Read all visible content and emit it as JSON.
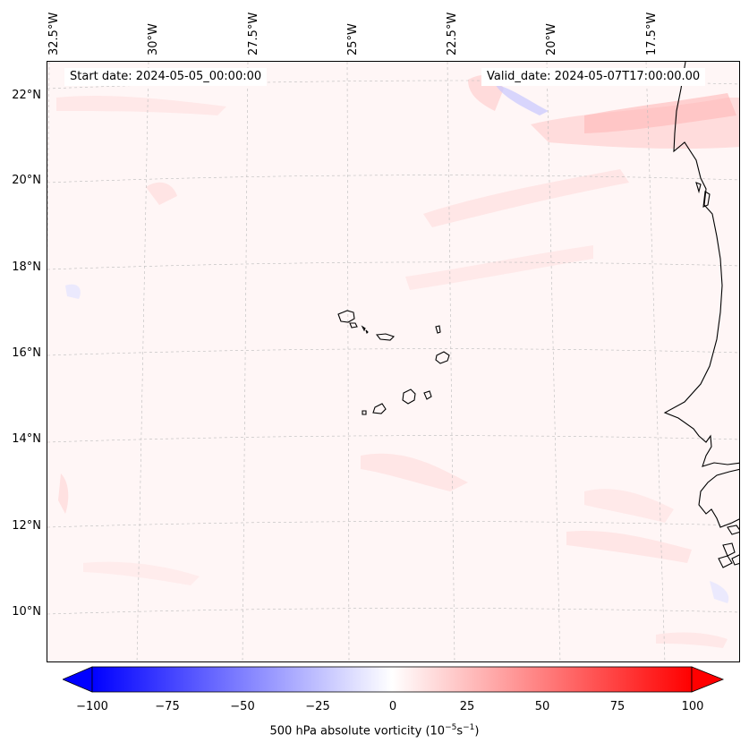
{
  "map": {
    "start_label": "Start date: 2024-05-05_00:00:00",
    "valid_label": "Valid_date: 2024-05-07T17:00:00.00",
    "lon_labels": [
      "32.5°W",
      "30°W",
      "27.5°W",
      "25°W",
      "22.5°W",
      "20°W",
      "17.5°W"
    ],
    "lat_labels": [
      "22°N",
      "20°N",
      "18°N",
      "16°N",
      "14°N",
      "12°N",
      "10°N"
    ],
    "colors": {
      "positive": "#ff0000",
      "negative": "#0000ff",
      "zero": "#ffffff",
      "coast": "#000000",
      "grid": "#bbbbbb"
    }
  },
  "colorbar": {
    "label_main": "500 hPa absolute vorticity (10",
    "label_exp1": "−5",
    "label_mid": "s",
    "label_exp2": "−1",
    "label_end": ")",
    "ticks": [
      "−100",
      "−75",
      "−50",
      "−25",
      "0",
      "25",
      "50",
      "75",
      "100"
    ],
    "min": -100,
    "max": 100,
    "extend": "both"
  }
}
